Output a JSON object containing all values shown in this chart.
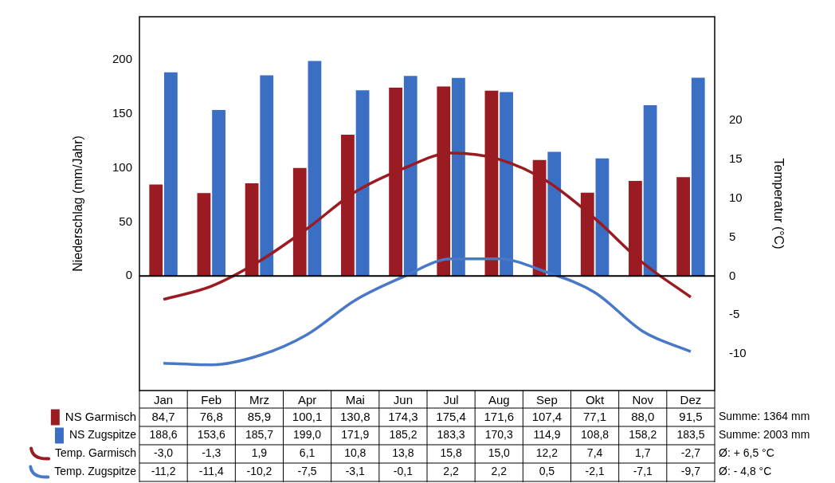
{
  "chart_data": {
    "type": "bar",
    "ylabel": "Niederschlag (mm/Jahr)",
    "y2label": "Temperatur (°C)",
    "categories": [
      "Jan",
      "Feb",
      "Mrz",
      "Apr",
      "Mai",
      "Jun",
      "Jul",
      "Aug",
      "Sep",
      "Okt",
      "Nov",
      "Dez"
    ],
    "series": [
      {
        "name": "NS Garmisch",
        "color": "#9b1b22",
        "values": [
          84.7,
          76.8,
          85.9,
          100.1,
          130.8,
          174.3,
          175.4,
          171.6,
          107.4,
          77.1,
          88.0,
          91.5
        ],
        "value_labels": [
          "84,7",
          "76,8",
          "85,9",
          "100,1",
          "130,8",
          "174,3",
          "175,4",
          "171,6",
          "107,4",
          "77,1",
          "88,0",
          "91,5"
        ]
      },
      {
        "name": "NS Zugspitze",
        "color": "#3b6fc4",
        "values": [
          188.6,
          153.6,
          185.7,
          199.0,
          171.9,
          185.2,
          183.3,
          170.3,
          114.9,
          108.8,
          158.2,
          183.5
        ],
        "value_labels": [
          "188,6",
          "153,6",
          "185,7",
          "199,0",
          "171,9",
          "185,2",
          "183,3",
          "170,3",
          "114,9",
          "108,8",
          "158,2",
          "183,5"
        ]
      },
      {
        "name": "Temp. Garmisch",
        "type": "line",
        "axis": "y2",
        "color": "#9b1b22",
        "values": [
          -3.0,
          -1.3,
          1.9,
          6.1,
          10.8,
          13.8,
          15.8,
          15.0,
          12.2,
          7.4,
          1.7,
          -2.7
        ],
        "value_labels": [
          "-3,0",
          "-1,3",
          "1,9",
          "6,1",
          "10,8",
          "13,8",
          "15,8",
          "15,0",
          "12,2",
          "7,4",
          "1,7",
          "-2,7"
        ]
      },
      {
        "name": "Temp. Zugspitze",
        "type": "line",
        "axis": "y2",
        "color": "#4a78c8",
        "values": [
          -11.2,
          -11.4,
          -10.2,
          -7.5,
          -3.1,
          -0.1,
          2.2,
          2.2,
          0.5,
          -2.1,
          -7.1,
          -9.7
        ],
        "value_labels": [
          "-11,2",
          "-11,4",
          "-10,2",
          "-7,5",
          "-3,1",
          "-0,1",
          "2,2",
          "2,2",
          "0,5",
          "-2,1",
          "-7,1",
          "-9,7"
        ]
      }
    ],
    "ylim": [
      -106,
      240
    ],
    "yticks": [
      0,
      50,
      100,
      150,
      200
    ],
    "y2lim": [
      -14.7,
      33.3
    ],
    "y2ticks": [
      -10,
      -5,
      0,
      5,
      10,
      15,
      20
    ],
    "ref_lines": [
      {
        "axis": "y",
        "value": 0,
        "color": "#000000"
      }
    ],
    "annotations": [
      "Summe: 1364 mm",
      "Summe: 2003 mm",
      "Ø: + 6,5 °C",
      "Ø: - 4,8 °C"
    ],
    "legend": "bottom",
    "marker": "none",
    "line_style": "solid",
    "grid": false
  }
}
